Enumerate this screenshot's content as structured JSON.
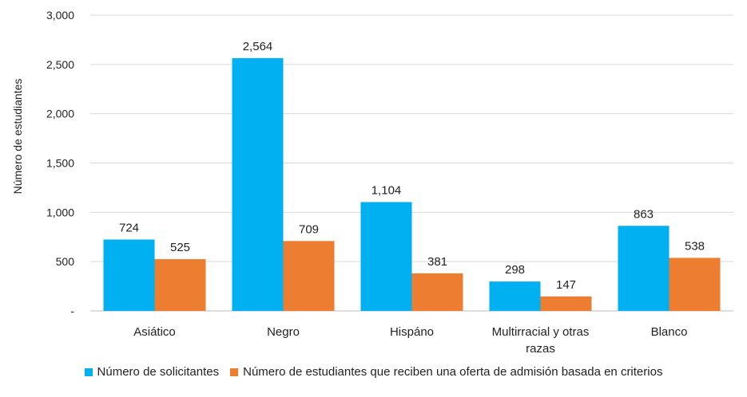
{
  "chart_data": {
    "type": "bar",
    "title": "",
    "xlabel": "",
    "ylabel": "Número de estudiantes",
    "ylim": [
      0,
      3000
    ],
    "yticks": [
      {
        "value": 0,
        "label": "-"
      },
      {
        "value": 500,
        "label": "500"
      },
      {
        "value": 1000,
        "label": "1,000"
      },
      {
        "value": 1500,
        "label": "1,500"
      },
      {
        "value": 2000,
        "label": "2,000"
      },
      {
        "value": 2500,
        "label": "2,500"
      },
      {
        "value": 3000,
        "label": "3,000"
      }
    ],
    "grid": true,
    "legend_position": "bottom",
    "categories": [
      [
        "Asiático"
      ],
      [
        "Negro"
      ],
      [
        "Hispáno"
      ],
      [
        "Multirracial y otras",
        "razas"
      ],
      [
        "Blanco"
      ]
    ],
    "series": [
      {
        "name": "Número de solicitantes",
        "color": "#00b0f0",
        "values": [
          724,
          2564,
          1104,
          298,
          863
        ],
        "labels": [
          "724",
          "2,564",
          "1,104",
          "298",
          "863"
        ]
      },
      {
        "name": "Número de estudiantes que reciben una oferta de admisión basada en criterios",
        "color": "#ed7d31",
        "values": [
          525,
          709,
          381,
          147,
          538
        ],
        "labels": [
          "525",
          "709",
          "381",
          "147",
          "538"
        ]
      }
    ]
  }
}
